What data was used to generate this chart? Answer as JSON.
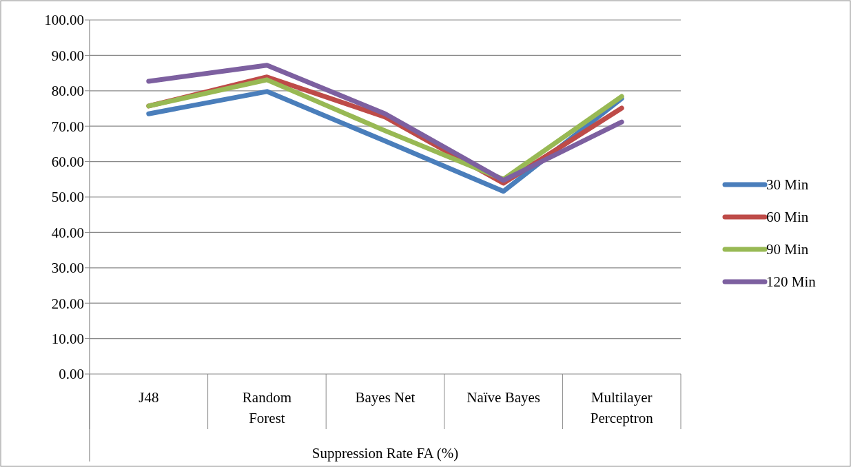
{
  "chart_data": {
    "type": "line",
    "xlabel": "Suppression Rate FA (%)",
    "categories": [
      "J48",
      "Random Forest",
      "Bayes Net",
      "Naïve Bayes",
      "Multilayer Perceptron"
    ],
    "series": [
      {
        "name": "30 Min",
        "color": "#4a7ebb",
        "values": [
          73.5,
          79.8,
          65.8,
          51.6,
          77.8
        ]
      },
      {
        "name": "60 Min",
        "color": "#be4b48",
        "values": [
          75.7,
          83.9,
          72.6,
          53.9,
          75.1
        ]
      },
      {
        "name": "90 Min",
        "color": "#98b954",
        "values": [
          75.7,
          83.1,
          68.7,
          55.0,
          78.4
        ]
      },
      {
        "name": "120 Min",
        "color": "#7d60a0",
        "values": [
          82.7,
          87.2,
          73.5,
          54.7,
          71.2
        ]
      }
    ],
    "ylim": [
      0,
      100
    ],
    "yticks": [
      {
        "value": 0,
        "label": "0.00"
      },
      {
        "value": 10,
        "label": "10.00"
      },
      {
        "value": 20,
        "label": "20.00"
      },
      {
        "value": 30,
        "label": "30.00"
      },
      {
        "value": 40,
        "label": "40.00"
      },
      {
        "value": 50,
        "label": "50.00"
      },
      {
        "value": 60,
        "label": "60.00"
      },
      {
        "value": 70,
        "label": "70.00"
      },
      {
        "value": 80,
        "label": "80.00"
      },
      {
        "value": 90,
        "label": "90.00"
      },
      {
        "value": 100,
        "label": "100.00"
      }
    ],
    "grid": "y",
    "legend": "right",
    "marker": "none",
    "line_style": "solid"
  }
}
